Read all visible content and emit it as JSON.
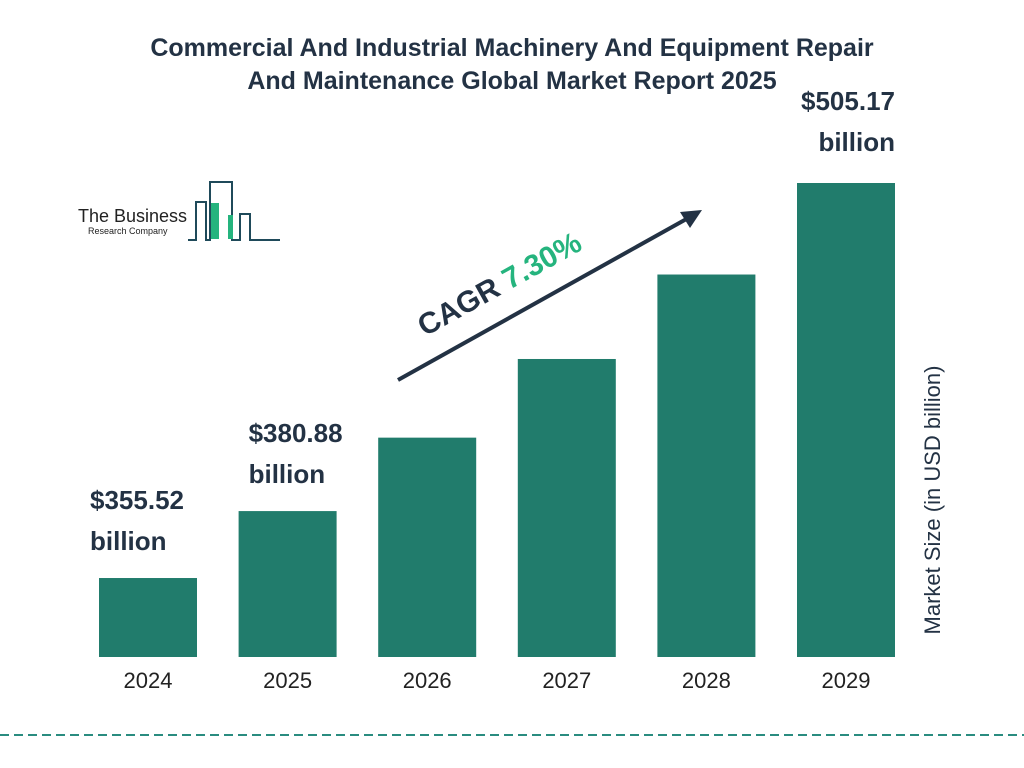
{
  "title_lines": [
    "Commercial And Industrial Machinery And Equipment Repair",
    "And Maintenance Global Market Report 2025"
  ],
  "logo": {
    "line1": "The Business",
    "line2": "Research Company"
  },
  "cagr": {
    "label": "CAGR ",
    "value": "7.30%"
  },
  "colors": {
    "bar": "#217c6c",
    "text": "#233244",
    "accent": "#25b47e",
    "dash": "#2a8c80"
  },
  "chart_data": {
    "type": "bar",
    "categories": [
      "2024",
      "2025",
      "2026",
      "2027",
      "2028",
      "2029"
    ],
    "values": [
      355.52,
      380.88,
      408.7,
      438.5,
      470.5,
      505.17
    ],
    "value_labels": [
      {
        "index": 0,
        "line1": "$355.52",
        "line2": "billion"
      },
      {
        "index": 1,
        "line1": "$380.88",
        "line2": "billion"
      },
      {
        "index": 5,
        "line1": "$505.17",
        "line2": "billion"
      }
    ],
    "ylabel": "Market Size (in USD billion)",
    "xlabel": "",
    "ylim": [
      325.6,
      505.17
    ],
    "grid": false
  }
}
